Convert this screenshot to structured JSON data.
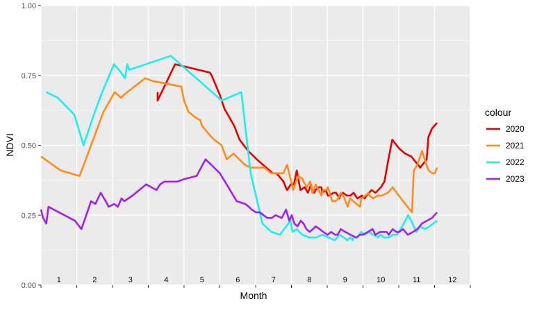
{
  "chart_data": {
    "type": "line",
    "title": "",
    "xlabel": "Month",
    "ylabel": "NDVI",
    "xlim": [
      0,
      12
    ],
    "ylim": [
      0,
      1
    ],
    "yticks": [
      0,
      0.25,
      0.5,
      0.75,
      1
    ],
    "ytick_labels": [
      "0.00",
      "0.25",
      "0.50",
      "0.75",
      "1.00"
    ],
    "month_labels": [
      "1",
      "2",
      "3",
      "4",
      "5",
      "6",
      "7",
      "8",
      "9",
      "10",
      "11",
      "12"
    ],
    "grid": true,
    "legend": {
      "title": "colour",
      "position": "right"
    },
    "series": [
      {
        "name": "2020",
        "color": "#e60000",
        "x": [
          3.26,
          3.26,
          3.75,
          4.72,
          4.77,
          5.0,
          5.13,
          5.4,
          5.55,
          5.79,
          6.03,
          6.48,
          6.58,
          6.78,
          6.84,
          6.88,
          6.98,
          7.07,
          7.15,
          7.25,
          7.37,
          7.46,
          7.55,
          7.59,
          7.64,
          7.67,
          7.77,
          7.84,
          7.86,
          7.96,
          8.02,
          8.07,
          8.17,
          8.25,
          8.34,
          8.36,
          8.44,
          8.55,
          8.65,
          8.74,
          8.84,
          8.97,
          9.05,
          9.1,
          9.24,
          9.35,
          9.5,
          9.6,
          9.71,
          9.82,
          10.0,
          10.18,
          10.35,
          10.6,
          10.78,
          10.83,
          10.93,
          11.07
        ],
        "y": [
          0.69,
          0.66,
          0.79,
          0.76,
          0.75,
          0.68,
          0.63,
          0.57,
          0.52,
          0.48,
          0.45,
          0.4,
          0.4,
          0.37,
          0.35,
          0.34,
          0.36,
          0.36,
          0.41,
          0.34,
          0.35,
          0.33,
          0.36,
          0.33,
          0.33,
          0.34,
          0.35,
          0.35,
          0.33,
          0.34,
          0.32,
          0.32,
          0.33,
          0.33,
          0.31,
          0.32,
          0.33,
          0.32,
          0.32,
          0.33,
          0.31,
          0.32,
          0.31,
          0.32,
          0.34,
          0.33,
          0.35,
          0.37,
          0.45,
          0.52,
          0.49,
          0.47,
          0.46,
          0.42,
          0.45,
          0.53,
          0.56,
          0.58
        ]
      },
      {
        "name": "2021",
        "color": "#ff8c1a",
        "x": [
          0.0,
          0.55,
          1.08,
          1.75,
          2.06,
          2.24,
          2.31,
          2.91,
          3.12,
          3.92,
          4.0,
          4.12,
          4.31,
          4.45,
          4.5,
          4.69,
          4.84,
          5.05,
          5.19,
          5.38,
          5.7,
          5.86,
          6.05,
          6.24,
          6.43,
          6.65,
          6.78,
          6.84,
          6.88,
          7.05,
          7.13,
          7.2,
          7.31,
          7.34,
          7.43,
          7.52,
          7.6,
          7.68,
          7.76,
          7.84,
          7.89,
          7.98,
          8.02,
          8.07,
          8.14,
          8.23,
          8.31,
          8.37,
          8.45,
          8.57,
          8.64,
          8.82,
          8.92,
          8.95,
          9.07,
          9.15,
          9.18,
          9.28,
          9.42,
          9.53,
          9.7,
          9.83,
          10.0,
          10.18,
          10.37,
          10.42,
          10.52,
          10.65,
          10.8,
          10.84,
          10.93,
          11.01,
          11.07
        ],
        "y": [
          0.46,
          0.41,
          0.39,
          0.62,
          0.69,
          0.67,
          0.68,
          0.74,
          0.73,
          0.71,
          0.66,
          0.62,
          0.6,
          0.59,
          0.57,
          0.54,
          0.52,
          0.5,
          0.45,
          0.47,
          0.43,
          0.42,
          0.42,
          0.42,
          0.4,
          0.4,
          0.4,
          0.42,
          0.43,
          0.34,
          0.37,
          0.39,
          0.38,
          0.37,
          0.35,
          0.37,
          0.33,
          0.36,
          0.34,
          0.32,
          0.34,
          0.34,
          0.35,
          0.33,
          0.3,
          0.3,
          0.31,
          0.33,
          0.32,
          0.28,
          0.31,
          0.29,
          0.28,
          0.31,
          0.32,
          0.33,
          0.32,
          0.31,
          0.32,
          0.32,
          0.33,
          0.35,
          0.32,
          0.29,
          0.26,
          0.41,
          0.43,
          0.48,
          0.42,
          0.41,
          0.4,
          0.4,
          0.42
        ]
      },
      {
        "name": "2022",
        "color": "#1aeef0",
        "x": [
          0.15,
          0.47,
          0.93,
          1.19,
          1.48,
          1.71,
          2.04,
          2.24,
          2.35,
          2.41,
          2.47,
          3.63,
          5.05,
          5.6,
          5.86,
          6.19,
          6.44,
          6.68,
          6.97,
          7.03,
          7.15,
          7.3,
          7.5,
          7.69,
          7.86,
          8.05,
          8.21,
          8.34,
          8.47,
          8.56,
          8.64,
          8.71,
          8.73,
          8.85,
          8.95,
          9.06,
          9.16,
          9.29,
          9.43,
          9.49,
          9.6,
          9.71,
          9.84,
          9.95,
          10.05,
          10.14,
          10.26,
          10.35,
          10.49,
          10.59,
          10.73,
          10.86,
          11.07
        ],
        "y": [
          0.69,
          0.67,
          0.61,
          0.5,
          0.61,
          0.69,
          0.79,
          0.76,
          0.74,
          0.79,
          0.77,
          0.82,
          0.66,
          0.69,
          0.4,
          0.22,
          0.19,
          0.18,
          0.23,
          0.19,
          0.2,
          0.18,
          0.17,
          0.17,
          0.18,
          0.17,
          0.16,
          0.18,
          0.17,
          0.16,
          0.17,
          0.16,
          0.17,
          0.17,
          0.19,
          0.18,
          0.19,
          0.18,
          0.17,
          0.18,
          0.17,
          0.17,
          0.18,
          0.18,
          0.2,
          0.22,
          0.25,
          0.23,
          0.19,
          0.21,
          0.2,
          0.21,
          0.23
        ]
      },
      {
        "name": "2023",
        "color": "#a020f0",
        "x": [
          0.0,
          0.06,
          0.15,
          0.21,
          0.95,
          1.13,
          1.4,
          1.52,
          1.67,
          1.81,
          1.89,
          2.05,
          2.15,
          2.25,
          2.33,
          2.56,
          2.94,
          3.23,
          3.33,
          3.45,
          3.6,
          3.81,
          4.03,
          4.35,
          4.6,
          5.0,
          5.19,
          5.47,
          5.71,
          5.81,
          5.89,
          6.01,
          6.12,
          6.22,
          6.33,
          6.45,
          6.56,
          6.73,
          6.85,
          6.94,
          7.01,
          7.08,
          7.17,
          7.26,
          7.34,
          7.42,
          7.51,
          7.6,
          7.68,
          7.79,
          7.89,
          8.01,
          8.11,
          8.22,
          8.29,
          8.38,
          8.5,
          8.65,
          8.81,
          8.91,
          9.0,
          9.14,
          9.27,
          9.35,
          9.48,
          9.66,
          9.72,
          9.83,
          9.93,
          10.01,
          10.12,
          10.25,
          10.4,
          10.52,
          10.65,
          10.79,
          10.93,
          11.07
        ],
        "y": [
          0.27,
          0.24,
          0.22,
          0.28,
          0.23,
          0.2,
          0.3,
          0.29,
          0.33,
          0.3,
          0.28,
          0.29,
          0.28,
          0.31,
          0.3,
          0.32,
          0.36,
          0.34,
          0.36,
          0.37,
          0.37,
          0.37,
          0.38,
          0.39,
          0.45,
          0.4,
          0.36,
          0.3,
          0.29,
          0.28,
          0.27,
          0.26,
          0.26,
          0.25,
          0.24,
          0.24,
          0.25,
          0.24,
          0.27,
          0.23,
          0.25,
          0.22,
          0.21,
          0.23,
          0.22,
          0.2,
          0.19,
          0.2,
          0.21,
          0.2,
          0.19,
          0.18,
          0.19,
          0.18,
          0.18,
          0.2,
          0.19,
          0.18,
          0.17,
          0.18,
          0.18,
          0.19,
          0.2,
          0.18,
          0.19,
          0.19,
          0.18,
          0.2,
          0.19,
          0.19,
          0.2,
          0.18,
          0.19,
          0.2,
          0.22,
          0.23,
          0.24,
          0.26
        ]
      }
    ]
  }
}
